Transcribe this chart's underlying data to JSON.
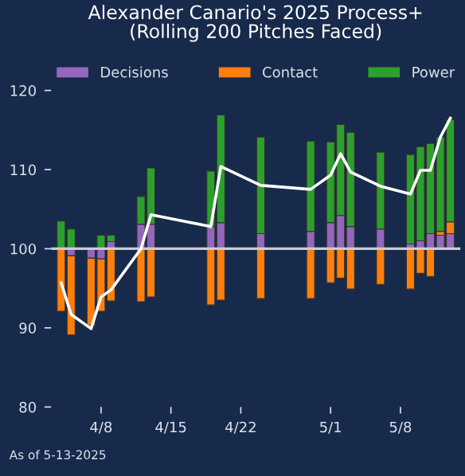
{
  "chart_data": {
    "type": "bar",
    "title": "Alexander Canario's 2025 Process+\n(Rolling 200 Pitches Faced)",
    "x": [
      "2025-04-04",
      "2025-04-05",
      "2025-04-07",
      "2025-04-08",
      "2025-04-09",
      "2025-04-12",
      "2025-04-13",
      "2025-04-19",
      "2025-04-20",
      "2025-04-24",
      "2025-04-29",
      "2025-05-01",
      "2025-05-02",
      "2025-05-03",
      "2025-05-06",
      "2025-05-09",
      "2025-05-10",
      "2025-05-11",
      "2025-05-12",
      "2025-05-13"
    ],
    "series": [
      {
        "name": "Decisions",
        "color": "#9467bd",
        "base": [
          null,
          100,
          100,
          100,
          100,
          100,
          100,
          100,
          100,
          100,
          100,
          100,
          100,
          100,
          100,
          100,
          100,
          100,
          100,
          100
        ],
        "values": [
          null,
          -0.9,
          -1.2,
          -1.3,
          0.9,
          3.1,
          3.1,
          2.8,
          3.3,
          1.9,
          2.2,
          3.3,
          4.2,
          2.8,
          2.5,
          0.6,
          1.0,
          1.9,
          1.7,
          1.9
        ]
      },
      {
        "name": "Contact",
        "color": "#ff7f0e",
        "base": [
          100,
          99.1,
          98.8,
          98.7,
          100,
          100,
          100,
          100,
          100,
          100,
          100,
          100,
          100,
          100,
          100,
          100,
          100,
          100,
          101.7,
          101.9
        ],
        "values": [
          -7.9,
          -10.0,
          -8.5,
          -6.6,
          -6.6,
          -6.7,
          -6.1,
          -7.1,
          -6.5,
          -6.3,
          -6.3,
          -4.3,
          -3.7,
          -5.1,
          -4.5,
          -5.1,
          -3.1,
          -3.5,
          0.5,
          1.5
        ]
      },
      {
        "name": "Power",
        "color": "#2ca02c",
        "base": [
          100,
          100,
          null,
          100,
          100.9,
          103.1,
          103.1,
          102.8,
          103.3,
          101.9,
          102.2,
          103.3,
          104.2,
          102.8,
          102.5,
          100.6,
          101.0,
          101.9,
          102.2,
          103.4
        ],
        "values": [
          3.5,
          2.5,
          null,
          1.7,
          0.8,
          3.5,
          7.1,
          7.0,
          13.6,
          12.2,
          11.4,
          10.2,
          11.5,
          11.9,
          9.7,
          11.3,
          11.9,
          11.4,
          11.9,
          12.9
        ]
      },
      {
        "type": "line",
        "color": "#ffffff",
        "values": [
          95.7,
          91.7,
          89.9,
          93.9,
          94.8,
          100.0,
          104.3,
          102.8,
          110.4,
          108.0,
          107.5,
          109.3,
          112.0,
          109.7,
          107.9,
          106.9,
          109.9,
          109.9,
          114.1,
          116.5
        ]
      }
    ],
    "xlim": [
      "2025-04-03",
      "2025-05-14"
    ],
    "xticks": [
      {
        "value": "2025-04-08",
        "label": "4/8"
      },
      {
        "value": "2025-04-15",
        "label": "4/15"
      },
      {
        "value": "2025-04-22",
        "label": "4/22"
      },
      {
        "value": "2025-05-01",
        "label": "5/1"
      },
      {
        "value": "2025-05-08",
        "label": "5/8"
      }
    ],
    "ylim": [
      80,
      120
    ],
    "yticks": [
      80,
      90,
      100,
      110,
      120
    ],
    "ref_lines": [
      {
        "axis": "y",
        "value": 100,
        "color": "#c8ccd6"
      }
    ],
    "legend": "top",
    "annotations": [
      "As of 5-13-2025"
    ]
  }
}
